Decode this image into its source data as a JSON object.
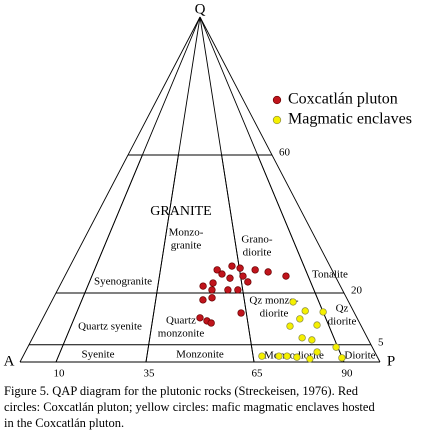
{
  "chart_data": {
    "type": "ternary",
    "vertices": [
      "Q",
      "A",
      "P"
    ],
    "xlim": [
      0,
      100
    ],
    "ylim": [
      0,
      100
    ],
    "xticks": [
      10,
      35,
      65,
      90
    ],
    "yticks": [
      5,
      20,
      60
    ],
    "fields": [
      [
        "GRANITE"
      ],
      [
        "Monzo-",
        "granite"
      ],
      [
        "Grano-",
        "diorite"
      ],
      [
        "Syenogranite"
      ],
      [
        "Tonalite"
      ],
      [
        "Quartz syenite"
      ],
      [
        "Quartz",
        "monzonite"
      ],
      [
        "Qz monzo-",
        "diorite"
      ],
      [
        "Qz",
        "diorite"
      ],
      [
        "Syenite"
      ],
      [
        "Monzonite"
      ],
      [
        "Monzodiorite"
      ],
      [
        "Diorite"
      ]
    ],
    "series": [
      {
        "name": "Coxcatlán pluton",
        "color": "#c0141c",
        "x": [
          56.5,
          62.3,
          65.3,
          58.2,
          61.0,
          54.7,
          65.9,
          70.9,
          75.6,
          67.3,
          81.8,
          51.1,
          54.2,
          59.8,
          63.3,
          54.1,
          51.0,
          63.3,
          50.0,
          52.2,
          53.5
        ],
        "values": [
          26.7,
          27.8,
          27.2,
          25.5,
          24.3,
          22.9,
          24.9,
          26.7,
          26.1,
          23.2,
          24.9,
          22.0,
          20.9,
          20.9,
          20.9,
          18.6,
          18.0,
          14.2,
          12.8,
          11.9,
          11.3
        ]
      },
      {
        "name": "Magmatic enclaves",
        "color": "#f5f000",
        "x": [
          81.3,
          84.3,
          90.0,
          77.9,
          81.7,
          86.4,
          83.2,
          80.5,
          72.3,
          74.6,
          77.3,
          80.8,
          83.5,
          89.5,
          89.9,
          67.5
        ],
        "values": [
          17.4,
          14.8,
          14.5,
          10.4,
          12.5,
          10.7,
          6.4,
          7.0,
          1.7,
          1.7,
          1.4,
          0.9,
          2.9,
          4.3,
          1.2,
          1.7
        ]
      }
    ],
    "caption": [
      "Figure 5. QAP diagram for the plutonic rocks (Streckeisen, 1976). Red",
      "circles: Coxcatlán pluton; yellow circles: mafic magmatic enclaves hosted",
      "in the Coxcatlán pluton."
    ]
  }
}
